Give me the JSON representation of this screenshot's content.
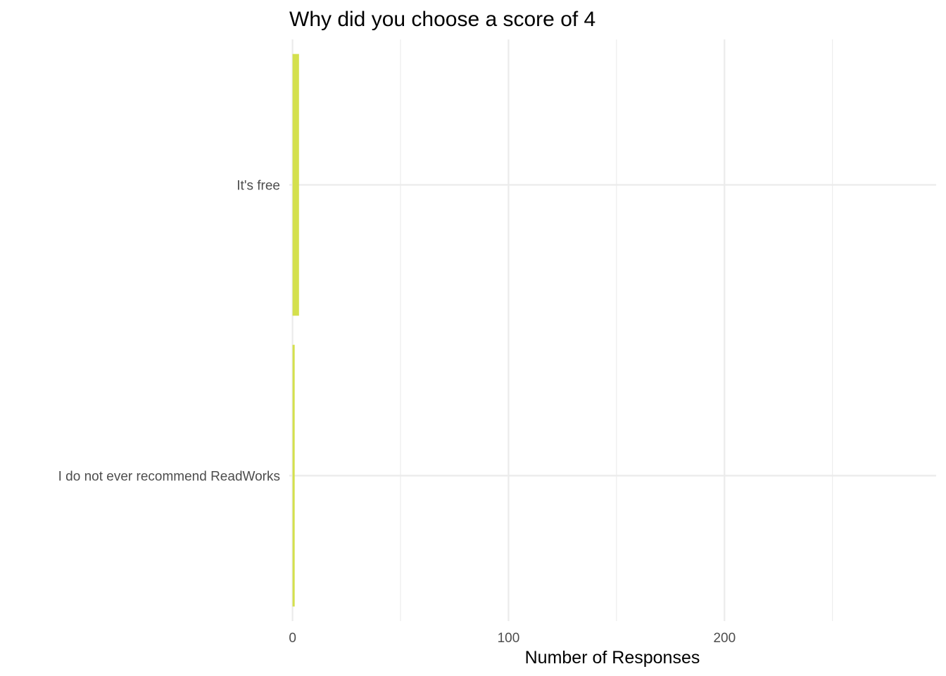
{
  "chart_data": {
    "type": "bar",
    "orientation": "horizontal",
    "title": "Why did you choose a score of 4",
    "xlabel": "Number of Responses",
    "ylabel": "",
    "categories": [
      "It's free",
      "I do not ever recommend ReadWorks"
    ],
    "values": [
      3,
      1
    ],
    "xlim": [
      -1.5,
      298
    ],
    "x_major_ticks": [
      0,
      100,
      200
    ],
    "x_minor_ticks": [
      50,
      150,
      250
    ],
    "grid": true,
    "legend": "none",
    "bar_color": "#d4e04d"
  }
}
